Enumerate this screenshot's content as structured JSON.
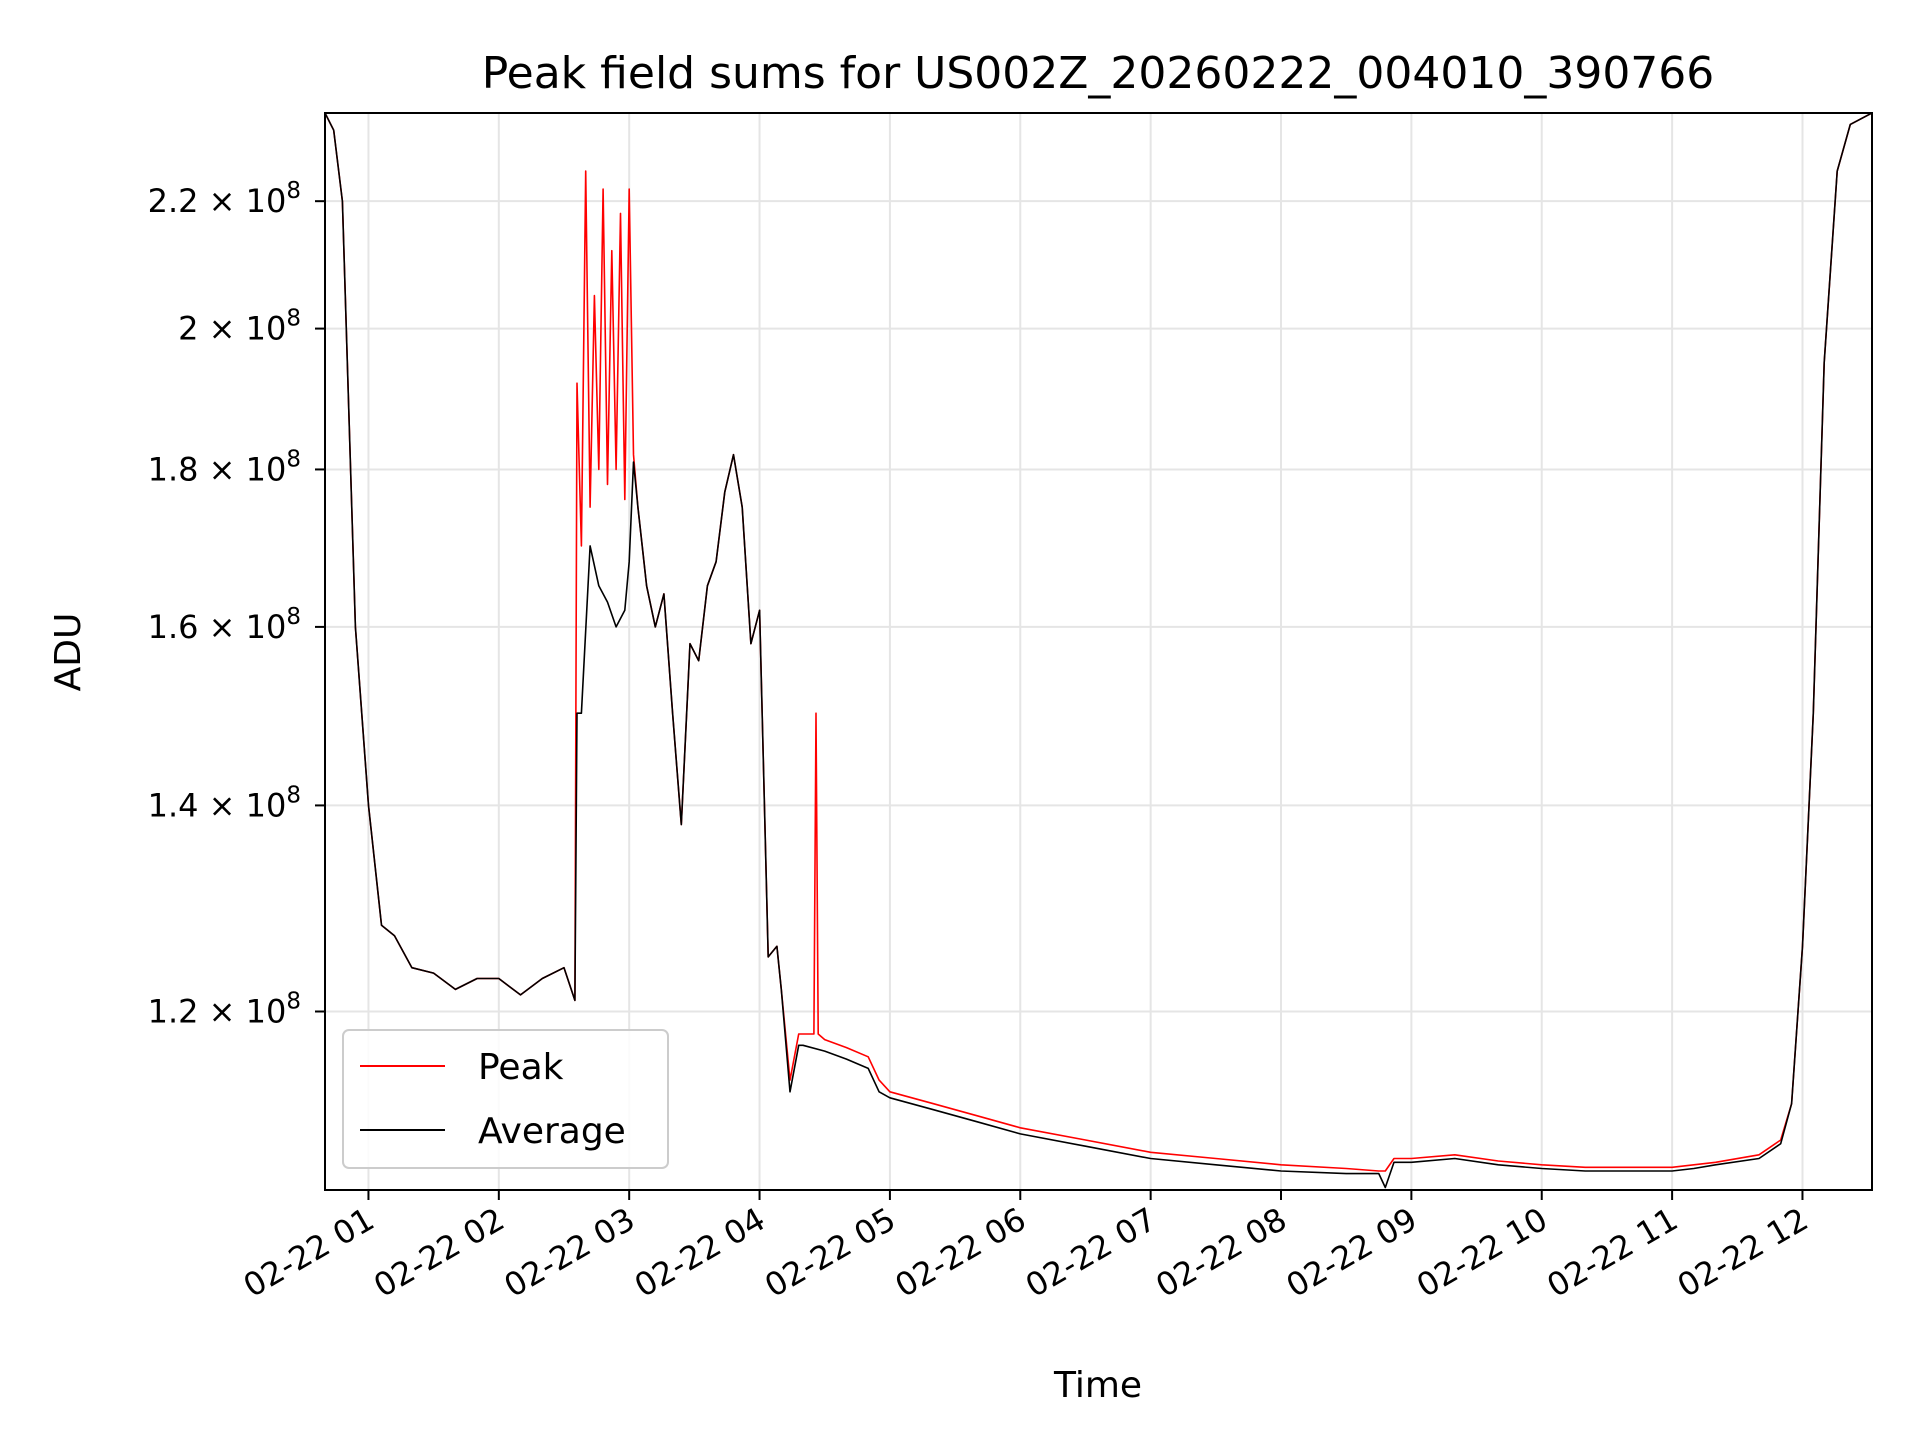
{
  "chart_data": {
    "type": "line",
    "title": "Peak field sums for US002Z_20260222_004010_390766",
    "xlabel": "Time",
    "ylabel": "ADU",
    "yscale": "log",
    "grid": true,
    "legend_position": "lower-left",
    "xlim": [
      "2026-02-22T00:40:00",
      "2026-02-22T12:32:00"
    ],
    "ylim": [
      105000000,
      235000000
    ],
    "x_ticks": [
      {
        "value": "2026-02-22T01:00",
        "label": "02-22 01"
      },
      {
        "value": "2026-02-22T02:00",
        "label": "02-22 02"
      },
      {
        "value": "2026-02-22T03:00",
        "label": "02-22 03"
      },
      {
        "value": "2026-02-22T04:00",
        "label": "02-22 04"
      },
      {
        "value": "2026-02-22T05:00",
        "label": "02-22 05"
      },
      {
        "value": "2026-02-22T06:00",
        "label": "02-22 06"
      },
      {
        "value": "2026-02-22T07:00",
        "label": "02-22 07"
      },
      {
        "value": "2026-02-22T08:00",
        "label": "02-22 08"
      },
      {
        "value": "2026-02-22T09:00",
        "label": "02-22 09"
      },
      {
        "value": "2026-02-22T10:00",
        "label": "02-22 10"
      },
      {
        "value": "2026-02-22T11:00",
        "label": "02-22 11"
      },
      {
        "value": "2026-02-22T12:00",
        "label": "02-22 12"
      }
    ],
    "y_ticks": [
      {
        "value": 120000000,
        "mantissa": "1.2",
        "base": "10",
        "exponent": "8"
      },
      {
        "value": 140000000,
        "mantissa": "1.4",
        "base": "10",
        "exponent": "8"
      },
      {
        "value": 160000000,
        "mantissa": "1.6",
        "base": "10",
        "exponent": "8"
      },
      {
        "value": 180000000,
        "mantissa": "1.8",
        "base": "10",
        "exponent": "8"
      },
      {
        "value": 200000000,
        "mantissa": "2",
        "base": "10",
        "exponent": "8"
      },
      {
        "value": 220000000,
        "mantissa": "2.2",
        "base": "10",
        "exponent": "8"
      }
    ],
    "series": [
      {
        "name": "Peak",
        "color": "#ff0000",
        "x": [
          "2026-02-22T00:40",
          "2026-02-22T00:44",
          "2026-02-22T00:48",
          "2026-02-22T00:54",
          "2026-02-22T01:00",
          "2026-02-22T01:06",
          "2026-02-22T01:12",
          "2026-02-22T01:20",
          "2026-02-22T01:30",
          "2026-02-22T01:40",
          "2026-02-22T01:50",
          "2026-02-22T02:00",
          "2026-02-22T02:10",
          "2026-02-22T02:20",
          "2026-02-22T02:30",
          "2026-02-22T02:35",
          "2026-02-22T02:36",
          "2026-02-22T02:38",
          "2026-02-22T02:40",
          "2026-02-22T02:42",
          "2026-02-22T02:44",
          "2026-02-22T02:46",
          "2026-02-22T02:48",
          "2026-02-22T02:50",
          "2026-02-22T02:52",
          "2026-02-22T02:54",
          "2026-02-22T02:56",
          "2026-02-22T02:58",
          "2026-02-22T03:00",
          "2026-02-22T03:02",
          "2026-02-22T03:04",
          "2026-02-22T03:06",
          "2026-02-22T03:08",
          "2026-02-22T03:12",
          "2026-02-22T03:16",
          "2026-02-22T03:20",
          "2026-02-22T03:24",
          "2026-02-22T03:28",
          "2026-02-22T03:32",
          "2026-02-22T03:36",
          "2026-02-22T03:40",
          "2026-02-22T03:44",
          "2026-02-22T03:48",
          "2026-02-22T03:52",
          "2026-02-22T03:56",
          "2026-02-22T04:00",
          "2026-02-22T04:04",
          "2026-02-22T04:08",
          "2026-02-22T04:10",
          "2026-02-22T04:14",
          "2026-02-22T04:18",
          "2026-02-22T04:20",
          "2026-02-22T04:25",
          "2026-02-22T04:26",
          "2026-02-22T04:27",
          "2026-02-22T04:30",
          "2026-02-22T04:40",
          "2026-02-22T04:50",
          "2026-02-22T04:55",
          "2026-02-22T05:00",
          "2026-02-22T05:20",
          "2026-02-22T05:40",
          "2026-02-22T06:00",
          "2026-02-22T06:30",
          "2026-02-22T07:00",
          "2026-02-22T07:30",
          "2026-02-22T08:00",
          "2026-02-22T08:30",
          "2026-02-22T08:45",
          "2026-02-22T08:48",
          "2026-02-22T08:52",
          "2026-02-22T09:00",
          "2026-02-22T09:20",
          "2026-02-22T09:40",
          "2026-02-22T10:00",
          "2026-02-22T10:20",
          "2026-02-22T10:40",
          "2026-02-22T11:00",
          "2026-02-22T11:10",
          "2026-02-22T11:20",
          "2026-02-22T11:40",
          "2026-02-22T11:50",
          "2026-02-22T11:55",
          "2026-02-22T12:00",
          "2026-02-22T12:05",
          "2026-02-22T12:10",
          "2026-02-22T12:16",
          "2026-02-22T12:22",
          "2026-02-22T12:32"
        ],
        "y": [
          235000000,
          232000000,
          220000000,
          160000000,
          140000000,
          128000000,
          127000000,
          124000000,
          123500000,
          122000000,
          123000000,
          123000000,
          121500000,
          123000000,
          124000000,
          121000000,
          192000000,
          170000000,
          225000000,
          175000000,
          205000000,
          180000000,
          222000000,
          178000000,
          212000000,
          180000000,
          218000000,
          176000000,
          222000000,
          182000000,
          175000000,
          170000000,
          165000000,
          160000000,
          164000000,
          150000000,
          138000000,
          158000000,
          156000000,
          165000000,
          168000000,
          177000000,
          182000000,
          175000000,
          158000000,
          162000000,
          125000000,
          126000000,
          122000000,
          114000000,
          118000000,
          118000000,
          118000000,
          150000000,
          118000000,
          117500000,
          116800000,
          116000000,
          114000000,
          113000000,
          112000000,
          111000000,
          110000000,
          109000000,
          108000000,
          107500000,
          107000000,
          106700000,
          106500000,
          106500000,
          107500000,
          107500000,
          107800000,
          107300000,
          107000000,
          106800000,
          106800000,
          106800000,
          107000000,
          107200000,
          107800000,
          109000000,
          112000000,
          126000000,
          150000000,
          195000000,
          225000000,
          233000000,
          235000000
        ]
      },
      {
        "name": "Average",
        "color": "#000000",
        "x": [
          "2026-02-22T00:40",
          "2026-02-22T00:44",
          "2026-02-22T00:48",
          "2026-02-22T00:54",
          "2026-02-22T01:00",
          "2026-02-22T01:06",
          "2026-02-22T01:12",
          "2026-02-22T01:20",
          "2026-02-22T01:30",
          "2026-02-22T01:40",
          "2026-02-22T01:50",
          "2026-02-22T02:00",
          "2026-02-22T02:10",
          "2026-02-22T02:20",
          "2026-02-22T02:30",
          "2026-02-22T02:35",
          "2026-02-22T02:36",
          "2026-02-22T02:38",
          "2026-02-22T02:42",
          "2026-02-22T02:46",
          "2026-02-22T02:50",
          "2026-02-22T02:54",
          "2026-02-22T02:58",
          "2026-02-22T03:00",
          "2026-02-22T03:02",
          "2026-02-22T03:04",
          "2026-02-22T03:06",
          "2026-02-22T03:08",
          "2026-02-22T03:12",
          "2026-02-22T03:16",
          "2026-02-22T03:20",
          "2026-02-22T03:24",
          "2026-02-22T03:28",
          "2026-02-22T03:32",
          "2026-02-22T03:36",
          "2026-02-22T03:40",
          "2026-02-22T03:44",
          "2026-02-22T03:48",
          "2026-02-22T03:52",
          "2026-02-22T03:56",
          "2026-02-22T04:00",
          "2026-02-22T04:04",
          "2026-02-22T04:08",
          "2026-02-22T04:10",
          "2026-02-22T04:14",
          "2026-02-22T04:18",
          "2026-02-22T04:20",
          "2026-02-22T04:30",
          "2026-02-22T04:40",
          "2026-02-22T04:50",
          "2026-02-22T04:55",
          "2026-02-22T05:00",
          "2026-02-22T05:20",
          "2026-02-22T05:40",
          "2026-02-22T06:00",
          "2026-02-22T06:30",
          "2026-02-22T07:00",
          "2026-02-22T07:30",
          "2026-02-22T08:00",
          "2026-02-22T08:30",
          "2026-02-22T08:45",
          "2026-02-22T08:48",
          "2026-02-22T08:52",
          "2026-02-22T09:00",
          "2026-02-22T09:20",
          "2026-02-22T09:40",
          "2026-02-22T10:00",
          "2026-02-22T10:20",
          "2026-02-22T10:40",
          "2026-02-22T11:00",
          "2026-02-22T11:10",
          "2026-02-22T11:20",
          "2026-02-22T11:40",
          "2026-02-22T11:50",
          "2026-02-22T11:55",
          "2026-02-22T12:00",
          "2026-02-22T12:05",
          "2026-02-22T12:10",
          "2026-02-22T12:16",
          "2026-02-22T12:22",
          "2026-02-22T12:32"
        ],
        "y": [
          235000000,
          232000000,
          220000000,
          160000000,
          140000000,
          128000000,
          127000000,
          124000000,
          123500000,
          122000000,
          123000000,
          123000000,
          121500000,
          123000000,
          124000000,
          121000000,
          150000000,
          150000000,
          170000000,
          165000000,
          163000000,
          160000000,
          162000000,
          168000000,
          181000000,
          175000000,
          170000000,
          165000000,
          160000000,
          164000000,
          150000000,
          138000000,
          158000000,
          156000000,
          165000000,
          168000000,
          177000000,
          182000000,
          175000000,
          158000000,
          162000000,
          125000000,
          126000000,
          122000000,
          113000000,
          117000000,
          117000000,
          116500000,
          115800000,
          115000000,
          113000000,
          112500000,
          111500000,
          110500000,
          109500000,
          108500000,
          107500000,
          107000000,
          106500000,
          106300000,
          106300000,
          105200000,
          107200000,
          107200000,
          107500000,
          107000000,
          106700000,
          106500000,
          106500000,
          106500000,
          106700000,
          107000000,
          107500000,
          108700000,
          112000000,
          126000000,
          150000000,
          195000000,
          225000000,
          233000000,
          235000000
        ]
      }
    ]
  }
}
